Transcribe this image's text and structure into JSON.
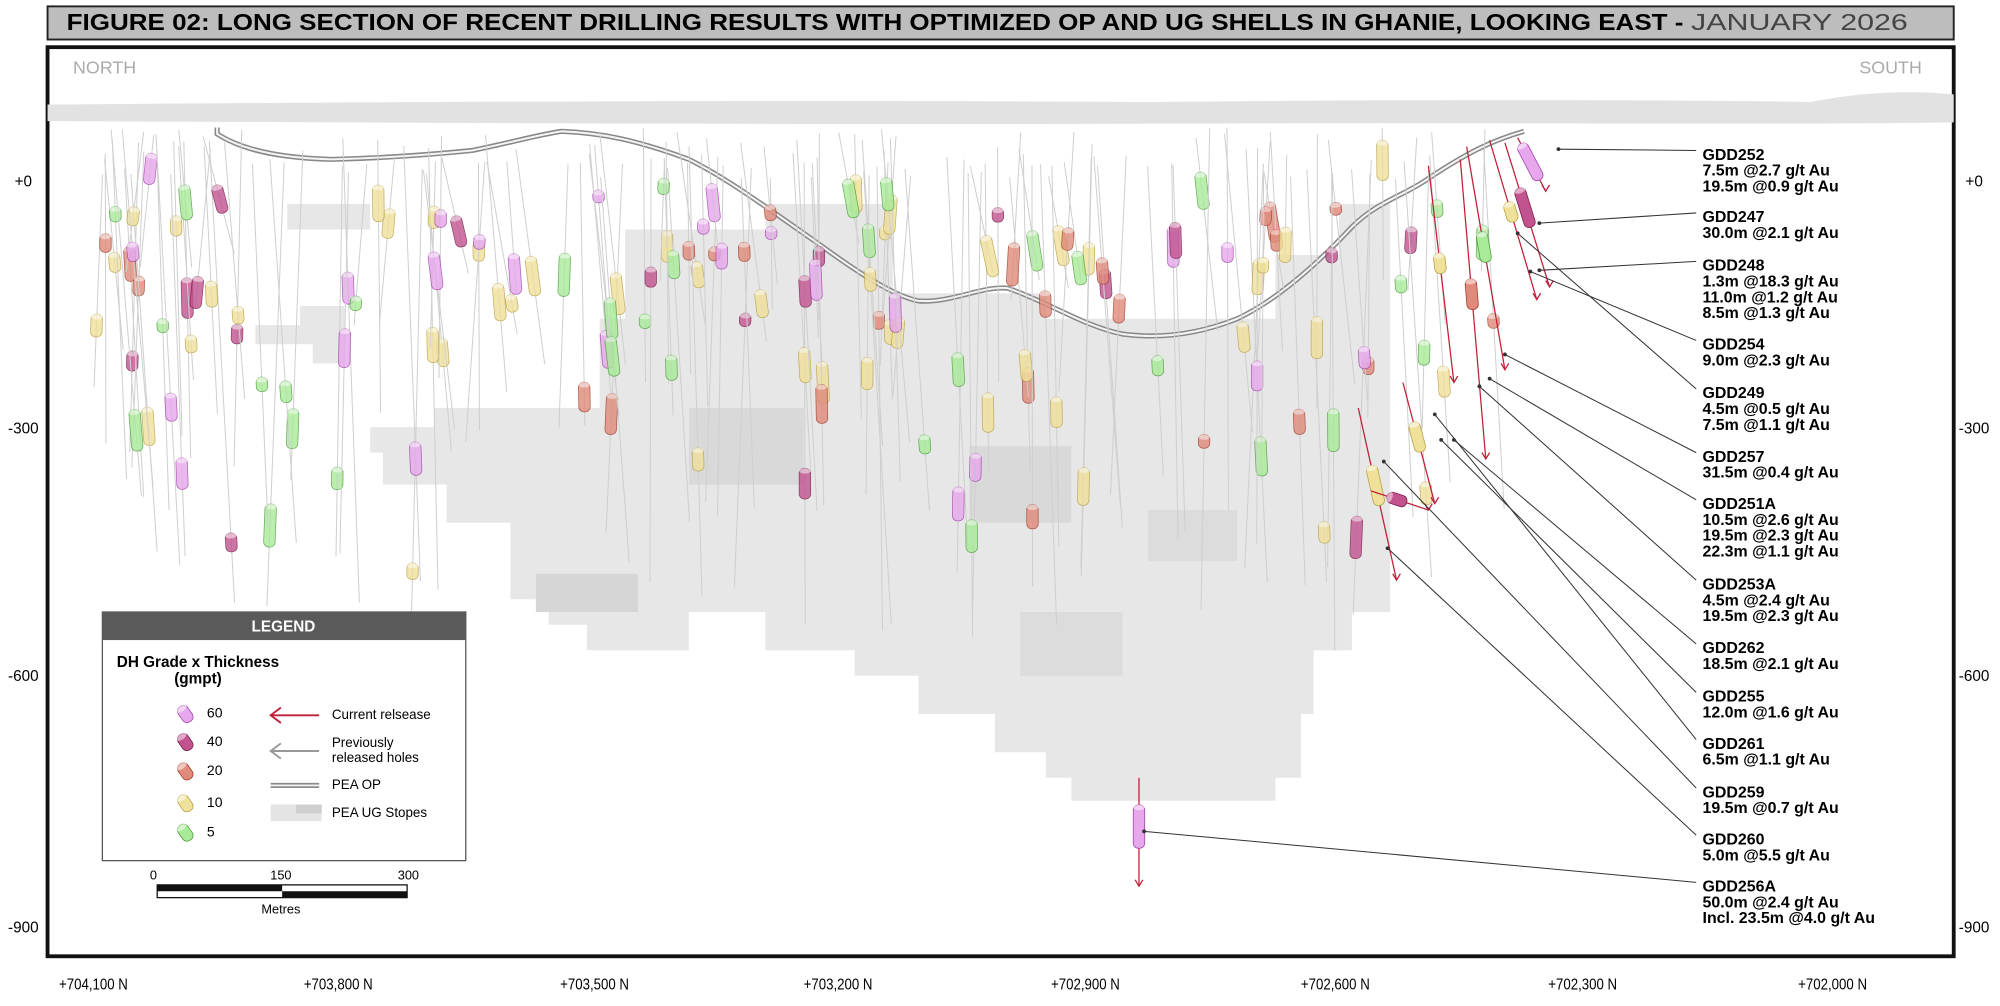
{
  "header": {
    "title": "FIGURE 02: LONG SECTION OF RECENT DRILLING RESULTS WITH OPTIMIZED OP AND UG SHELLS IN GHANIE, LOOKING EAST -",
    "date": "JANUARY 2026"
  },
  "section": {
    "left_label": "NORTH",
    "right_label": "SOUTH",
    "elevation_labels": [
      "+0",
      "-300",
      "-600",
      "-900"
    ],
    "northing_labels": [
      "+704,100 N",
      "+703,800 N",
      "+703,500 N",
      "+703,200 N",
      "+702,900 N",
      "+702,600 N",
      "+702,300 N",
      "+702,000 N"
    ]
  },
  "callouts": [
    {
      "hole": "GDD252",
      "intercepts": [
        "7.5m @2.7 g/t Au",
        "19.5m @0.9 g/t Au"
      ]
    },
    {
      "hole": "GDD247",
      "intercepts": [
        "30.0m @2.1 g/t Au"
      ]
    },
    {
      "hole": "GDD248",
      "intercepts": [
        "1.3m @18.3 g/t Au",
        "11.0m @1.2 g/t Au",
        "8.5m @1.3 g/t Au"
      ]
    },
    {
      "hole": "GDD254",
      "intercepts": [
        "9.0m @2.3 g/t Au"
      ]
    },
    {
      "hole": "GDD249",
      "intercepts": [
        "4.5m @0.5 g/t Au",
        "7.5m @1.1 g/t Au"
      ]
    },
    {
      "hole": "GDD257",
      "intercepts": [
        "31.5m @0.4 g/t Au"
      ]
    },
    {
      "hole": "GDD251A",
      "intercepts": [
        "10.5m @2.6 g/t Au",
        "19.5m @2.3 g/t Au",
        "22.3m @1.1 g/t Au"
      ]
    },
    {
      "hole": "GDD253A",
      "intercepts": [
        "4.5m @2.4 g/t Au",
        "19.5m @2.3 g/t Au"
      ]
    },
    {
      "hole": "GDD262",
      "intercepts": [
        "18.5m @2.1 g/t Au"
      ]
    },
    {
      "hole": "GDD255",
      "intercepts": [
        "12.0m @1.6 g/t Au"
      ]
    },
    {
      "hole": "GDD261",
      "intercepts": [
        "6.5m @1.1 g/t Au"
      ]
    },
    {
      "hole": "GDD259",
      "intercepts": [
        "19.5m @0.7 g/t Au"
      ]
    },
    {
      "hole": "GDD260",
      "intercepts": [
        "5.0m @5.5 g/t Au"
      ]
    },
    {
      "hole": "GDD256A",
      "intercepts": [
        "50.0m @2.4 g/t Au",
        "Incl. 23.5m @4.0 g/t Au"
      ]
    }
  ],
  "legend": {
    "title": "LEGEND",
    "subtitle": "DH Grade x Thickness",
    "unit": "(gmpt)",
    "grades": [
      60,
      40,
      20,
      10,
      5
    ],
    "symbols": [
      [
        "Current relsease"
      ],
      [
        "Previously",
        "released holes"
      ],
      [
        "PEA OP"
      ],
      [
        "PEA UG Stopes"
      ]
    ]
  },
  "scale_bar": {
    "ticks": [
      "0",
      "150",
      "300"
    ],
    "unit": "Metres"
  }
}
